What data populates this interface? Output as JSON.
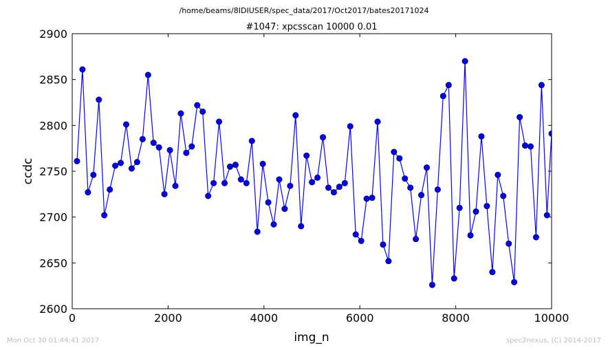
{
  "figure": {
    "suptitle": "/home/beams/8IDIUSER/spec_data/2017/Oct2017/bates20171024",
    "footer_left": "Mon Oct 30 01:44:41 2017",
    "footer_right": "spec2nexus, (C) 2014-2017"
  },
  "colors": {
    "series": "#0000ff",
    "axes": "#000000",
    "footer": "#bdbdbd"
  },
  "chart_data": {
    "type": "line",
    "title": "#1047: xpcsscan 10000 0.01",
    "xlabel": "img_n",
    "ylabel": "ccdc",
    "xlim": [
      0,
      10000
    ],
    "ylim": [
      2600,
      2900
    ],
    "xticks": [
      0,
      2000,
      4000,
      6000,
      8000,
      10000
    ],
    "yticks": [
      2600,
      2650,
      2700,
      2750,
      2800,
      2850,
      2900
    ],
    "grid": false,
    "legend": "none",
    "marker": "circle",
    "series": [
      {
        "x": [
          100,
          214,
          328,
          442,
          556,
          670,
          784,
          898,
          1012,
          1126,
          1240,
          1354,
          1468,
          1582,
          1696,
          1810,
          1924,
          2038,
          2152,
          2266,
          2380,
          2494,
          2608,
          2722,
          2836,
          2950,
          3064,
          3178,
          3292,
          3406,
          3520,
          3634,
          3748,
          3862,
          3976,
          4090,
          4204,
          4318,
          4432,
          4546,
          4660,
          4774,
          4888,
          5002,
          5116,
          5230,
          5344,
          5458,
          5572,
          5686,
          5800,
          5914,
          6028,
          6142,
          6256,
          6370,
          6484,
          6598,
          6712,
          6826,
          6940,
          7054,
          7168,
          7282,
          7396,
          7510,
          7624,
          7738,
          7852,
          7966,
          8080,
          8194,
          8308,
          8422,
          8536,
          8650,
          8764,
          8878,
          8992,
          9106,
          9220,
          9334,
          9448,
          9562,
          9676,
          9790,
          9904,
          10000
        ],
        "y": [
          2761,
          2861,
          2727,
          2746,
          2828,
          2702,
          2730,
          2756,
          2759,
          2801,
          2753,
          2760,
          2785,
          2855,
          2781,
          2776,
          2725,
          2773,
          2734,
          2813,
          2770,
          2777,
          2822,
          2815,
          2723,
          2737,
          2804,
          2737,
          2755,
          2757,
          2741,
          2737,
          2783,
          2684,
          2758,
          2716,
          2692,
          2741,
          2709,
          2734,
          2811,
          2690,
          2767,
          2738,
          2743,
          2787,
          2732,
          2727,
          2733,
          2737,
          2799,
          2681,
          2674,
          2720,
          2721,
          2804,
          2670,
          2652,
          2771,
          2764,
          2742,
          2732,
          2676,
          2724,
          2754,
          2626,
          2730,
          2832,
          2844,
          2633,
          2710,
          2870,
          2680,
          2706,
          2788,
          2712,
          2640,
          2746,
          2723,
          2671,
          2629,
          2809,
          2778,
          2777,
          2678,
          2844,
          2702,
          2791
        ]
      }
    ]
  }
}
